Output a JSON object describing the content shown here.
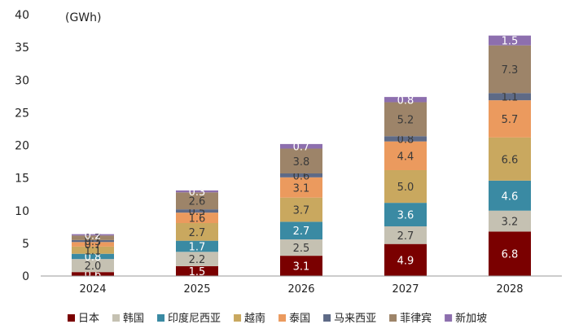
{
  "chart_data": {
    "type": "bar",
    "stacked": true,
    "unit_label": "(GWh)",
    "categories": [
      "2024",
      "2025",
      "2026",
      "2027",
      "2028"
    ],
    "yticks": [
      0,
      5,
      10,
      15,
      20,
      25,
      30,
      35,
      40
    ],
    "ylim": [
      0,
      40
    ],
    "grid": false,
    "legend_position": "bottom",
    "series": [
      {
        "name": "日本",
        "color": "#7a0000",
        "label_color": "#ffffff",
        "values": [
          0.6,
          1.5,
          3.1,
          4.9,
          6.8
        ]
      },
      {
        "name": "韩国",
        "color": "#c5c1b2",
        "label_color": "#3a3a3a",
        "values": [
          2.0,
          2.2,
          2.5,
          2.7,
          3.2
        ]
      },
      {
        "name": "印度尼西亚",
        "color": "#3a8aa3",
        "label_color": "#ffffff",
        "values": [
          0.8,
          1.7,
          2.7,
          3.6,
          4.6
        ]
      },
      {
        "name": "越南",
        "color": "#c9a85f",
        "label_color": "#3a3a3a",
        "values": [
          1.1,
          2.7,
          3.7,
          5.0,
          6.6
        ]
      },
      {
        "name": "泰国",
        "color": "#eb9a5e",
        "label_color": "#3a3a3a",
        "values": [
          0.7,
          1.6,
          3.1,
          4.4,
          5.7
        ]
      },
      {
        "name": "马来西亚",
        "color": "#5e6a86",
        "label_color": "#3a3a3a",
        "values": [
          0.3,
          0.5,
          0.6,
          0.8,
          1.1
        ]
      },
      {
        "name": "菲律宾",
        "color": "#9d8469",
        "label_color": "#3a3a3a",
        "values": [
          0.7,
          2.6,
          3.8,
          5.2,
          7.3
        ]
      },
      {
        "name": "新加坡",
        "color": "#8d6fae",
        "label_color": "#ffffff",
        "values": [
          0.2,
          0.3,
          0.7,
          0.8,
          1.5
        ]
      }
    ],
    "value_labels": [
      [
        "0.6",
        "1.5",
        "3.1",
        "4.9",
        "6.8"
      ],
      [
        "2.0",
        "2.2",
        "2.5",
        "2.7",
        "3.2"
      ],
      [
        "0.8",
        "1.7",
        "2.7",
        "3.6",
        "4.6"
      ],
      [
        "1.1",
        "2.7",
        "3.7",
        "5.0",
        "6.6"
      ],
      [
        "0.7",
        "1.6",
        "3.1",
        "4.4",
        "5.7"
      ],
      [
        "0.3",
        "0.5",
        "0.6",
        "0.8",
        "1.1"
      ],
      [
        "0.7",
        "2.6",
        "3.8",
        "5.2",
        "7.3"
      ],
      [
        "0.2",
        "0.3",
        "0.7",
        "0.8",
        "1.5"
      ]
    ]
  }
}
